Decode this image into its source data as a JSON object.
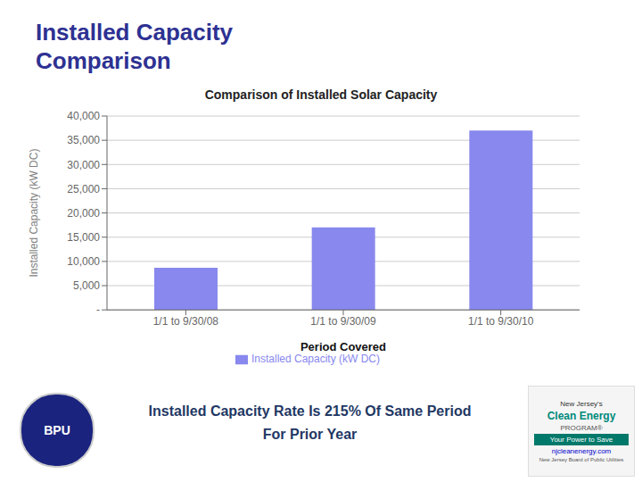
{
  "chart_data": {
    "type": "bar",
    "title": "Comparison of Installed Solar Capacity",
    "annotations": [
      "Installed Capacity",
      "Comparison",
      "Installed Capacity Rate Is 215% Of Same Period",
      "For Prior Year",
      "BPU",
      "New Jersey's",
      "Clean Energy",
      "PROGRAM®",
      "Your Power to Save",
      "njcleanenergy.com",
      "New Jersey Board of Public Utilities"
    ],
    "xlabel": "Period Covered",
    "ylabel": "Installed Capacity (kW DC)",
    "categories": [
      "1/1 to 9/30/08",
      "1/1 to 9/30/09",
      "1/1 to 9/30/10"
    ],
    "series": [
      {
        "name": "Installed Capacity (kW DC)",
        "color": "#8888ee",
        "values": [
          8700,
          17000,
          37000
        ]
      }
    ],
    "ylim": [
      0,
      40000
    ],
    "yticks": [
      {
        "value": 0,
        "label": "-"
      },
      {
        "value": 5000,
        "label": "5,000"
      },
      {
        "value": 10000,
        "label": "10,000"
      },
      {
        "value": 15000,
        "label": "15,000"
      },
      {
        "value": 20000,
        "label": "20,000"
      },
      {
        "value": 25000,
        "label": "25,000"
      },
      {
        "value": 30000,
        "label": "30,000"
      },
      {
        "value": 35000,
        "label": "35,000"
      },
      {
        "value": 40000,
        "label": "40,000"
      }
    ],
    "grid": true,
    "legend": "bottom"
  }
}
